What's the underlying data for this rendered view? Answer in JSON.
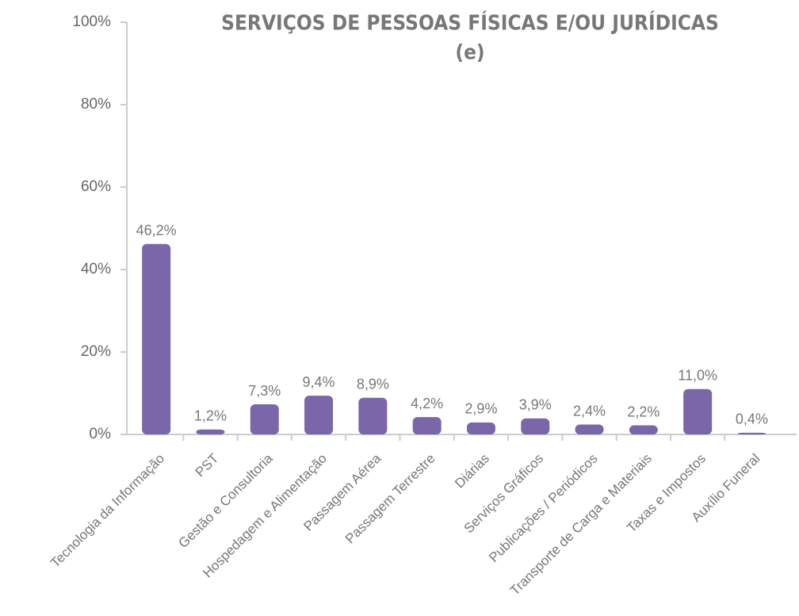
{
  "chart_data": {
    "type": "bar",
    "title": "SERVIÇOS DE PESSOAS FÍSICAS E/OU JURÍDICAS",
    "subtitle": "(e)",
    "categories": [
      "Tecnologia da Informação",
      "PST",
      "Gestão e Consultoria",
      "Hospedagem e Alimentação",
      "Passagem Aérea",
      "Passagem Terrestre",
      "Diárias",
      "Serviços Gráficos",
      "Publicações / Periódicos",
      "Transporte de Carga e Materiais",
      "Taxas e Impostos",
      "Auxílio Funeral"
    ],
    "values": [
      46.2,
      1.2,
      7.3,
      9.4,
      8.9,
      4.2,
      2.9,
      3.9,
      2.4,
      2.2,
      11.0,
      0.4
    ],
    "value_labels": [
      "46,2%",
      "1,2%",
      "7,3%",
      "9,4%",
      "8,9%",
      "4,2%",
      "2,9%",
      "3,9%",
      "2,4%",
      "2,2%",
      "11,0%",
      "0,4%"
    ],
    "color": "#7a66a9",
    "ylim": [
      0,
      100
    ],
    "yticks": [
      {
        "value": 0,
        "label": "0%"
      },
      {
        "value": 20,
        "label": "20%"
      },
      {
        "value": 40,
        "label": "40%"
      },
      {
        "value": 60,
        "label": "60%"
      },
      {
        "value": 80,
        "label": "80%"
      },
      {
        "value": 100,
        "label": "100%"
      }
    ],
    "grid": false
  }
}
